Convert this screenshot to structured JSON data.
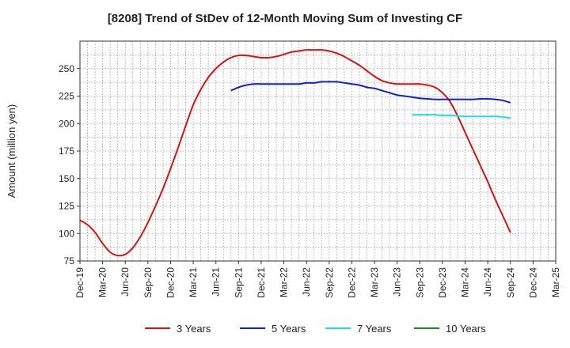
{
  "chart_data": {
    "type": "line",
    "title": "[8208]  Trend of StDev of 12-Month Moving Sum of Investing CF",
    "xlabel": "",
    "ylabel": "Amount (million yen)",
    "ylim": [
      75,
      275
    ],
    "yticks": [
      75,
      100,
      125,
      150,
      175,
      200,
      225,
      250
    ],
    "xticks": [
      "Dec-19",
      "Mar-20",
      "Jun-20",
      "Sep-20",
      "Dec-20",
      "Mar-21",
      "Jun-21",
      "Sep-21",
      "Dec-21",
      "Mar-22",
      "Jun-22",
      "Sep-22",
      "Dec-22",
      "Mar-23",
      "Jun-23",
      "Sep-23",
      "Dec-23",
      "Mar-24",
      "Jun-24",
      "Sep-24",
      "Dec-24",
      "Mar-25"
    ],
    "grid": true,
    "legend_position": "bottom",
    "series": [
      {
        "name": "3 Years",
        "color": "#dd1111",
        "x": [
          "Dec-19",
          "Jan-20",
          "Feb-20",
          "Mar-20",
          "Apr-20",
          "May-20",
          "Jun-20",
          "Jul-20",
          "Aug-20",
          "Sep-20",
          "Oct-20",
          "Nov-20",
          "Dec-20",
          "Jan-21",
          "Feb-21",
          "Mar-21",
          "Apr-21",
          "May-21",
          "Jun-21",
          "Jul-21",
          "Aug-21",
          "Sep-21",
          "Oct-21",
          "Nov-21",
          "Dec-21",
          "Jan-22",
          "Feb-22",
          "Mar-22",
          "Apr-22",
          "May-22",
          "Jun-22",
          "Jul-22",
          "Aug-22",
          "Sep-22",
          "Oct-22",
          "Nov-22",
          "Dec-22",
          "Jan-23",
          "Feb-23",
          "Mar-23",
          "Apr-23",
          "May-23",
          "Jun-23",
          "Jul-23",
          "Aug-23",
          "Sep-23",
          "Oct-23",
          "Nov-23",
          "Dec-23",
          "Jan-24",
          "Feb-24",
          "Mar-24",
          "Apr-24",
          "May-24",
          "Jun-24",
          "Jul-24",
          "Aug-24",
          "Sep-24"
        ],
        "values": [
          112,
          108,
          101,
          91,
          83,
          80,
          81,
          87,
          97,
          110,
          125,
          141,
          159,
          178,
          198,
          217,
          231,
          242,
          250,
          256,
          260,
          262,
          262,
          261,
          260,
          260,
          261,
          263,
          265,
          266,
          267,
          267,
          267,
          266,
          264,
          261,
          257,
          253,
          248,
          243,
          239,
          237,
          236,
          236,
          236,
          236,
          235,
          233,
          228,
          220,
          207,
          192,
          177,
          162,
          147,
          131,
          116,
          101
        ]
      },
      {
        "name": "5 Years",
        "color": "#1122cc",
        "x": [
          "Aug-21",
          "Sep-21",
          "Oct-21",
          "Nov-21",
          "Dec-21",
          "Jan-22",
          "Feb-22",
          "Mar-22",
          "Apr-22",
          "May-22",
          "Jun-22",
          "Jul-22",
          "Aug-22",
          "Sep-22",
          "Oct-22",
          "Nov-22",
          "Dec-22",
          "Jan-23",
          "Feb-23",
          "Mar-23",
          "Apr-23",
          "May-23",
          "Jun-23",
          "Jul-23",
          "Aug-23",
          "Sep-23",
          "Oct-23",
          "Nov-23",
          "Dec-23",
          "Jan-24",
          "Feb-24",
          "Mar-24",
          "Apr-24",
          "May-24",
          "Jun-24",
          "Jul-24",
          "Aug-24",
          "Sep-24"
        ],
        "values": [
          230,
          233,
          235,
          236,
          236,
          236,
          236,
          236,
          236,
          236,
          237,
          237,
          238,
          238,
          238,
          237,
          236,
          235,
          233,
          232,
          230,
          228,
          226,
          225,
          224,
          223,
          222.5,
          222,
          222,
          222,
          222,
          222,
          222,
          222.5,
          222.5,
          222,
          221,
          219
        ]
      },
      {
        "name": "7 Years",
        "color": "#22dddd",
        "x": [
          "Aug-23",
          "Sep-23",
          "Oct-23",
          "Nov-23",
          "Dec-23",
          "Jan-24",
          "Feb-24",
          "Mar-24",
          "Apr-24",
          "May-24",
          "Jun-24",
          "Jul-24",
          "Aug-24",
          "Sep-24"
        ],
        "values": [
          208,
          208,
          208,
          208,
          207.5,
          207.5,
          207,
          206.5,
          206.5,
          206.5,
          206.5,
          206.5,
          206,
          205
        ]
      },
      {
        "name": "10 Years",
        "color": "#228822",
        "x": [],
        "values": []
      }
    ]
  }
}
